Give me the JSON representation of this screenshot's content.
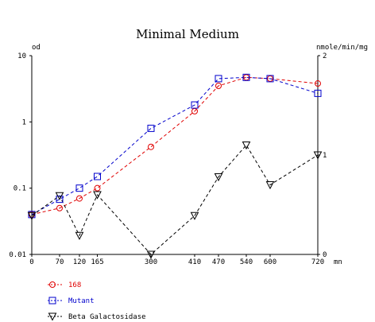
{
  "chart_data": {
    "type": "line",
    "title": "Minimal Medium",
    "x": [
      0,
      70,
      120,
      165,
      300,
      410,
      470,
      540,
      600,
      720
    ],
    "x_ticks": [
      "0",
      "70",
      "120",
      "165",
      "300",
      "410",
      "470",
      "540",
      "600",
      "720"
    ],
    "x_unit": "mn",
    "xlim": [
      0,
      720
    ],
    "left_axis": {
      "label": "od",
      "scale": "log",
      "ylim": [
        0.01,
        10
      ],
      "ticks": [
        "0.01",
        "0.1",
        "1",
        "10"
      ],
      "tick_values": [
        0.01,
        0.1,
        1,
        10
      ]
    },
    "right_axis": {
      "label": "nmole/min/mg",
      "scale": "linear",
      "ylim": [
        0,
        2
      ],
      "ticks": [
        "0",
        "1",
        "2"
      ],
      "tick_values": [
        0,
        1,
        2
      ]
    },
    "grid": false,
    "legend_position": "bottom-left",
    "series": [
      {
        "name": "168",
        "axis": "left",
        "marker": "circle",
        "color": "#e00000",
        "values": [
          0.04,
          0.05,
          0.07,
          0.1,
          0.42,
          1.45,
          3.5,
          4.7,
          4.5,
          3.8
        ]
      },
      {
        "name": "Mutant",
        "axis": "left",
        "marker": "square",
        "color": "#0000cc",
        "values": [
          0.04,
          0.068,
          0.1,
          0.15,
          0.8,
          1.8,
          4.5,
          4.7,
          4.5,
          2.7
        ]
      },
      {
        "name": "Beta Galactosidase",
        "axis": "right",
        "marker": "triangle-down",
        "color": "#000000",
        "values": [
          0.39,
          0.59,
          0.19,
          0.6,
          0.0,
          0.39,
          0.78,
          1.1,
          0.7,
          1.0
        ]
      }
    ]
  }
}
